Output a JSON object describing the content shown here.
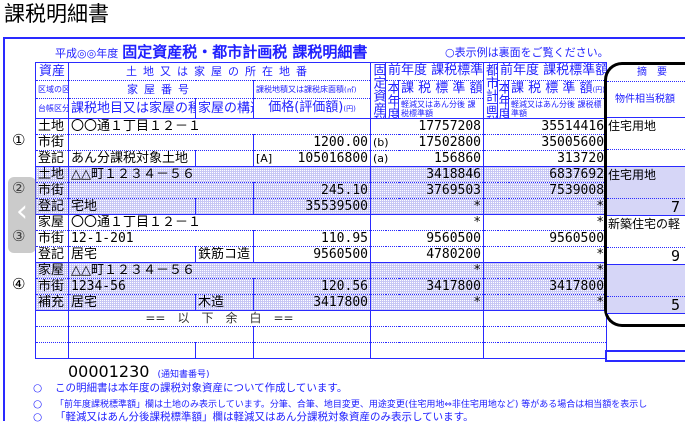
{
  "page_heading": "課税明細書",
  "form": {
    "year_label": "平成◎◎年度",
    "title": "固定資産税・都市計画税 課税明細書",
    "back_note": "○表示例は裏面をご覧ください。"
  },
  "headers": {
    "asset": "資産",
    "location": "土地又は家屋の所在地番",
    "zone": "区域の区分",
    "house_no": "家屋番号",
    "area": "課税地積又は課税床面積",
    "area_unit": "(㎡)",
    "ledger": "台帳区分",
    "category": "課税地目又は家屋の種類",
    "structure": "家屋の構造",
    "price": "価格(評価額)",
    "yen": "(円)",
    "fixed_tax": "固定資産税",
    "city_tax": "都市計画税",
    "this_year": "本年度",
    "prev_base": "前年度 課税標準額",
    "cur_base": "課 税 標 準 額",
    "reduced_base": "軽減又はあん分後 課税標準額",
    "remarks": "摘　要",
    "remarks_sub": "物件相当税額"
  },
  "items": [
    {
      "num": "①",
      "l1": {
        "label": "土地",
        "address": "〇〇通１丁目１２－１",
        "fixed_prev": "17757208",
        "city_prev": "35514416"
      },
      "l2": {
        "label": "市街",
        "house_no": "",
        "area": "1200.00",
        "fixed_mark": "(b)",
        "fixed_cur": "17502800",
        "city_cur": "35005600"
      },
      "l3": {
        "label": "登記",
        "category": "あん分課税対象土地",
        "structure": "",
        "price_mark": "[A]",
        "price": "105016800",
        "fixed_mark": "(a)",
        "fixed_reduced": "156860",
        "city_reduced": "313720"
      },
      "remarks": [
        "住宅用地",
        "",
        ""
      ]
    },
    {
      "num": "②",
      "l1": {
        "label": "土地",
        "address": "△△町１２３４－５６",
        "fixed_prev": "3418846",
        "city_prev": "6837692"
      },
      "l2": {
        "label": "市街",
        "house_no": "",
        "area": "245.10",
        "fixed_mark": "",
        "fixed_cur": "3769503",
        "city_cur": "7539008"
      },
      "l3": {
        "label": "登記",
        "category": "宅地",
        "structure": "",
        "price_mark": "",
        "price": "35539500",
        "fixed_mark": "",
        "fixed_reduced": "*",
        "city_reduced": "*"
      },
      "remarks": [
        "住宅用地",
        "",
        "7"
      ]
    },
    {
      "num": "③",
      "l1": {
        "label": "家屋",
        "address": "〇〇通１丁目１２－１",
        "fixed_prev": "*",
        "city_prev": "*"
      },
      "l2": {
        "label": "市街",
        "house_no": "12-1-201",
        "area": "110.95",
        "fixed_mark": "",
        "fixed_cur": "9560500",
        "city_cur": "9560500"
      },
      "l3": {
        "label": "登記",
        "category": "居宅",
        "structure": "鉄筋コ造",
        "price_mark": "",
        "price": "9560500",
        "fixed_mark": "",
        "fixed_reduced": "4780200",
        "city_reduced": "*"
      },
      "remarks": [
        "新築住宅の軽",
        "",
        "9"
      ]
    },
    {
      "num": "④",
      "l1": {
        "label": "家屋",
        "address": "△△町１２３４－５６",
        "fixed_prev": "*",
        "city_prev": "*"
      },
      "l2": {
        "label": "市街",
        "house_no": "1234-56",
        "area": "120.56",
        "fixed_mark": "",
        "fixed_cur": "3417800",
        "city_cur": "3417800"
      },
      "l3": {
        "label": "補充",
        "category": "居宅",
        "structure": "木造",
        "price_mark": "",
        "price": "3417800",
        "fixed_mark": "",
        "fixed_reduced": "*",
        "city_reduced": "*"
      },
      "remarks": [
        "",
        "",
        "5"
      ]
    }
  ],
  "blank_marker": "==　以　下　余　白　==",
  "notice": {
    "number": "00001230",
    "caption": "(通知書番号)"
  },
  "notes": [
    {
      "bullet": "○",
      "text": "この明細書は本年度の課税対象資産について作成しています。"
    },
    {
      "bullet": "○",
      "text": "「前年度課税標準額」欄は土地のみ表示しています。分筆、合筆、地目変更、用途変更(住宅用地⇔非住宅用地など) 等がある場合は相当額を表示し"
    },
    {
      "bullet": "○",
      "text": "「軽減又はあん分後課税標準額」欄は軽減又はあん分課税対象資産のみ表示しています。"
    }
  ],
  "nav": {
    "prev_icon": "chevron-left-icon",
    "prev_glyph": "‹"
  },
  "colors": {
    "form_blue": "#2a2aff",
    "shade": "#c6c6f4"
  }
}
